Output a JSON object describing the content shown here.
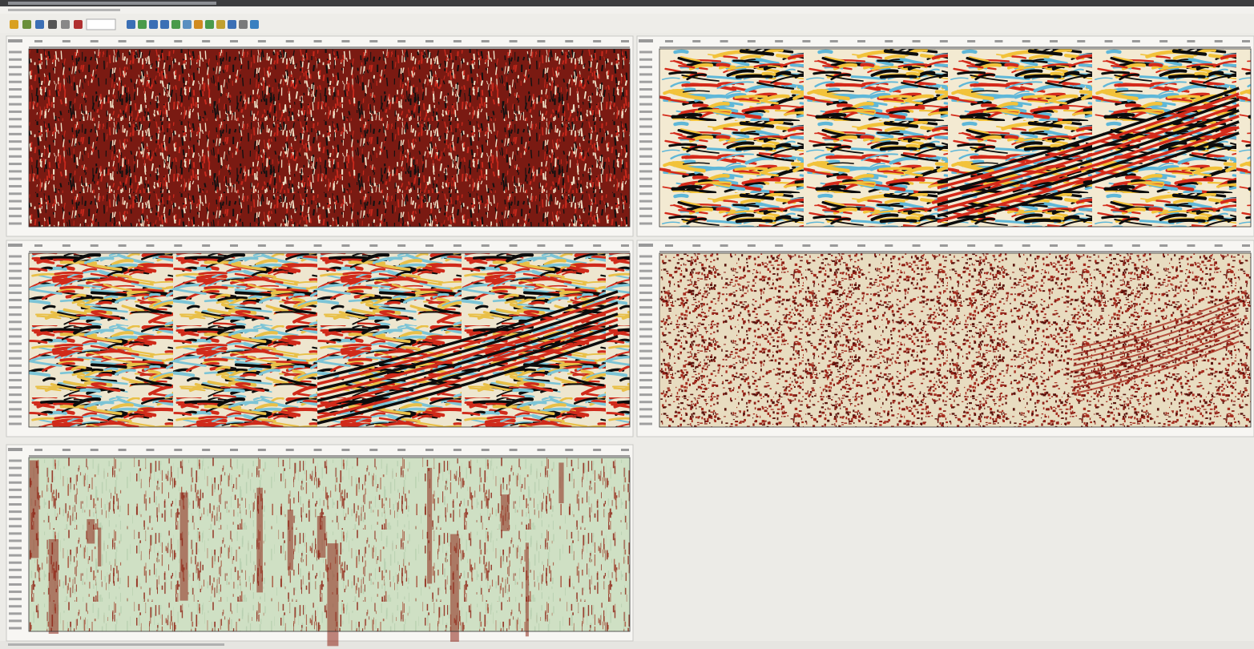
{
  "panels": [
    {
      "colors": [
        "#7a1a12",
        "#c8281c",
        "#111111",
        "#efe3c8"
      ]
    },
    {
      "colors": [
        "#f3ead2",
        "#d42a1a",
        "#0c0c0c",
        "#f2c23a",
        "#5fb7d8"
      ]
    },
    {
      "colors": [
        "#eee6cf",
        "#d02a1a",
        "#0c0c0c",
        "#e9c048",
        "#7cc4d6"
      ]
    },
    {
      "colors": [
        "#e8dcc0",
        "#8e1d14",
        "#a52a1c",
        "#5a120c"
      ]
    },
    {
      "colors": [
        "#cfe0c4",
        "#8e2416",
        "#a8563f",
        "#b8d0b0"
      ]
    }
  ]
}
